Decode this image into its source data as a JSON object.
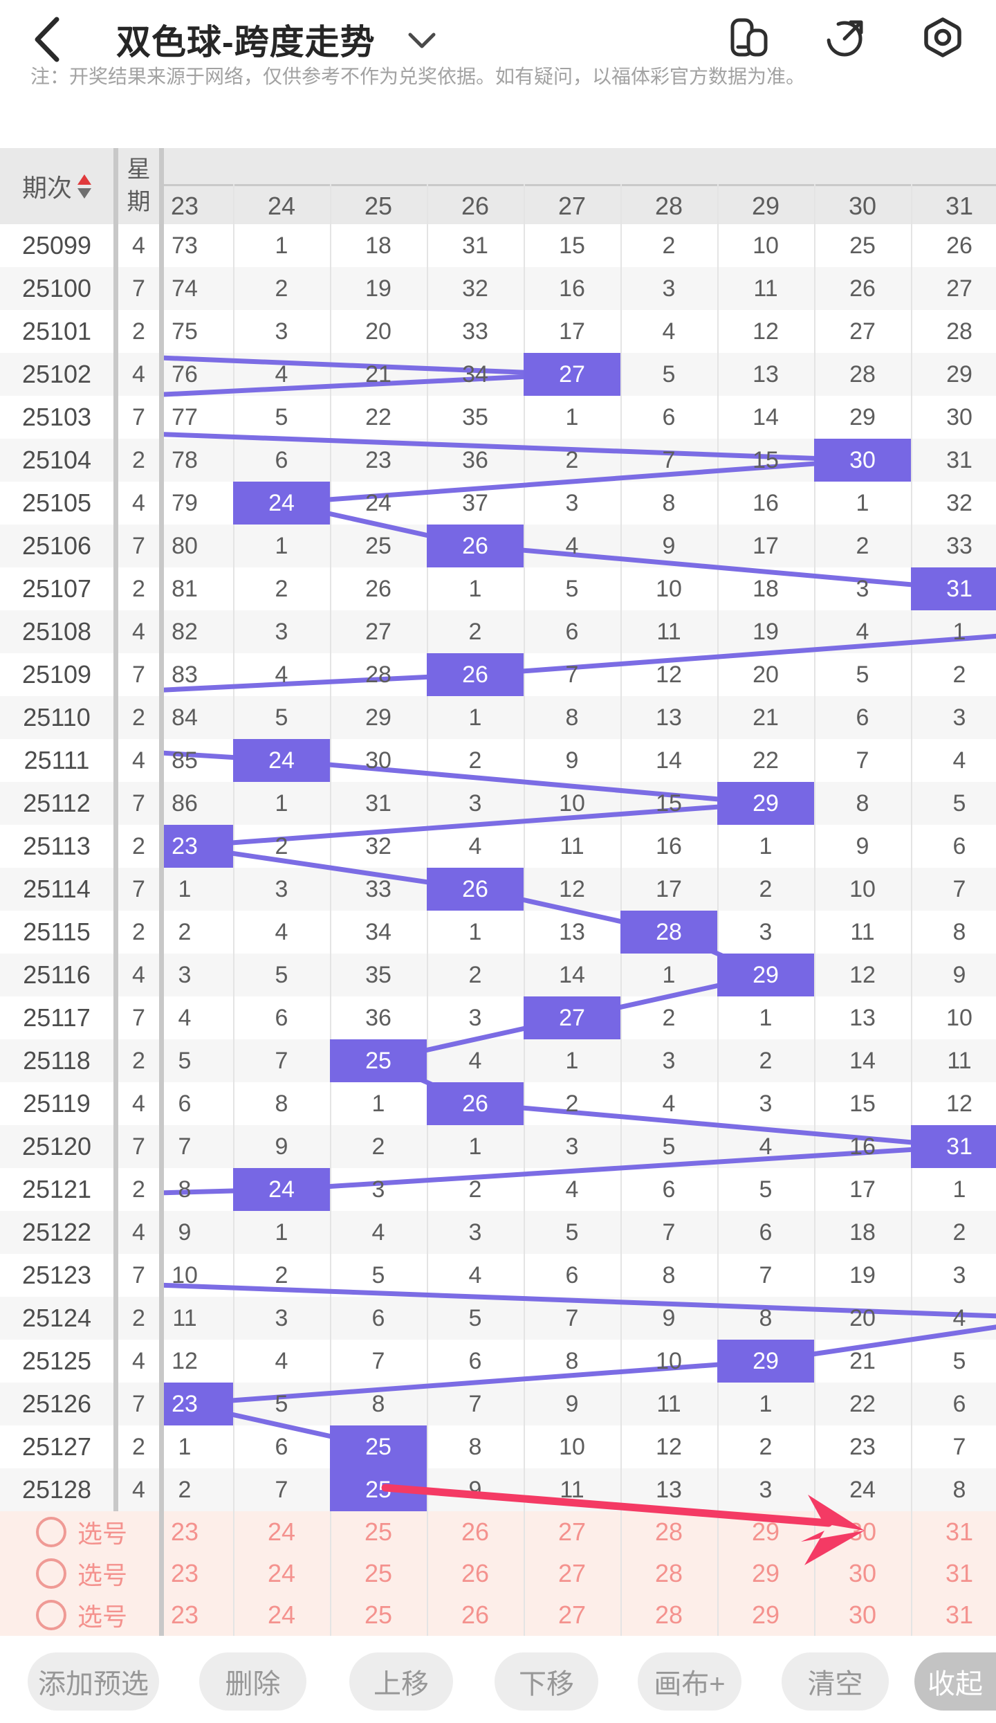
{
  "topbar": {
    "title": "双色球-跨度走势",
    "icons": [
      "window-switcher-icon",
      "share-icon",
      "settings-nut-icon"
    ]
  },
  "note": "注：开奖结果来源于网络，仅供参考不作为兑奖依据。如有疑问，以福体彩官方数据为准。",
  "table": {
    "period_header": "期次",
    "week_header": "星期",
    "columns": [
      "23",
      "24",
      "25",
      "26",
      "27",
      "28",
      "29",
      "30",
      "31"
    ],
    "col_start": 23,
    "rows": [
      {
        "period": "25099",
        "week": "4",
        "cells": [
          "73",
          "1",
          "18",
          "31",
          "15",
          "2",
          "10",
          "25",
          "26"
        ],
        "hit": null,
        "line_col": null
      },
      {
        "period": "25100",
        "week": "7",
        "cells": [
          "74",
          "2",
          "19",
          "32",
          "16",
          "3",
          "11",
          "26",
          "27"
        ],
        "hit": null,
        "line_col": null
      },
      {
        "period": "25101",
        "week": "2",
        "cells": [
          "75",
          "3",
          "20",
          "33",
          "17",
          "4",
          "12",
          "27",
          "28"
        ],
        "hit": null,
        "line_col": 16
      },
      {
        "period": "25102",
        "week": "4",
        "cells": [
          "76",
          "4",
          "21",
          "34",
          "27",
          "5",
          "13",
          "28",
          "29"
        ],
        "hit": 27,
        "line_col": 27
      },
      {
        "period": "25103",
        "week": "7",
        "cells": [
          "77",
          "5",
          "22",
          "35",
          "1",
          "6",
          "14",
          "29",
          "30"
        ],
        "hit": null,
        "line_col": 18
      },
      {
        "period": "25104",
        "week": "2",
        "cells": [
          "78",
          "6",
          "23",
          "36",
          "2",
          "7",
          "15",
          "30",
          "31"
        ],
        "hit": 30,
        "line_col": 30
      },
      {
        "period": "25105",
        "week": "4",
        "cells": [
          "79",
          "24",
          "24",
          "37",
          "3",
          "8",
          "16",
          "1",
          "32"
        ],
        "hit": 24,
        "line_col": 24
      },
      {
        "period": "25106",
        "week": "7",
        "cells": [
          "80",
          "1",
          "25",
          "26",
          "4",
          "9",
          "17",
          "2",
          "33"
        ],
        "hit": 26,
        "line_col": 26
      },
      {
        "period": "25107",
        "week": "2",
        "cells": [
          "81",
          "2",
          "26",
          "1",
          "5",
          "10",
          "18",
          "3",
          "31"
        ],
        "hit": 31,
        "line_col": 31
      },
      {
        "period": "25108",
        "week": "4",
        "cells": [
          "82",
          "3",
          "27",
          "2",
          "6",
          "11",
          "19",
          "4",
          "1"
        ],
        "hit": null,
        "line_col": 32
      },
      {
        "period": "25109",
        "week": "7",
        "cells": [
          "83",
          "4",
          "28",
          "26",
          "7",
          "12",
          "20",
          "5",
          "2"
        ],
        "hit": 26,
        "line_col": 26
      },
      {
        "period": "25110",
        "week": "2",
        "cells": [
          "84",
          "5",
          "29",
          "1",
          "8",
          "13",
          "21",
          "6",
          "3"
        ],
        "hit": null,
        "line_col": 17
      },
      {
        "period": "25111",
        "week": "4",
        "cells": [
          "85",
          "24",
          "30",
          "2",
          "9",
          "14",
          "22",
          "7",
          "4"
        ],
        "hit": 24,
        "line_col": 24
      },
      {
        "period": "25112",
        "week": "7",
        "cells": [
          "86",
          "1",
          "31",
          "3",
          "10",
          "15",
          "29",
          "8",
          "5"
        ],
        "hit": 29,
        "line_col": 29
      },
      {
        "period": "25113",
        "week": "2",
        "cells": [
          "23",
          "2",
          "32",
          "4",
          "11",
          "16",
          "1",
          "9",
          "6"
        ],
        "hit": 23,
        "line_col": 23
      },
      {
        "period": "25114",
        "week": "7",
        "cells": [
          "1",
          "3",
          "33",
          "26",
          "12",
          "17",
          "2",
          "10",
          "7"
        ],
        "hit": 26,
        "line_col": 26
      },
      {
        "period": "25115",
        "week": "2",
        "cells": [
          "2",
          "4",
          "34",
          "1",
          "13",
          "28",
          "3",
          "11",
          "8"
        ],
        "hit": 28,
        "line_col": 28
      },
      {
        "period": "25116",
        "week": "4",
        "cells": [
          "3",
          "5",
          "35",
          "2",
          "14",
          "1",
          "29",
          "12",
          "9"
        ],
        "hit": 29,
        "line_col": 29
      },
      {
        "period": "25117",
        "week": "7",
        "cells": [
          "4",
          "6",
          "36",
          "3",
          "27",
          "2",
          "1",
          "13",
          "10"
        ],
        "hit": 27,
        "line_col": 27
      },
      {
        "period": "25118",
        "week": "2",
        "cells": [
          "5",
          "7",
          "25",
          "4",
          "1",
          "3",
          "2",
          "14",
          "11"
        ],
        "hit": 25,
        "line_col": 25
      },
      {
        "period": "25119",
        "week": "4",
        "cells": [
          "6",
          "8",
          "1",
          "26",
          "2",
          "4",
          "3",
          "15",
          "12"
        ],
        "hit": 26,
        "line_col": 26
      },
      {
        "period": "25120",
        "week": "7",
        "cells": [
          "7",
          "9",
          "2",
          "1",
          "3",
          "5",
          "4",
          "16",
          "31"
        ],
        "hit": 31,
        "line_col": 31
      },
      {
        "period": "25121",
        "week": "2",
        "cells": [
          "8",
          "24",
          "3",
          "2",
          "4",
          "6",
          "5",
          "17",
          "1"
        ],
        "hit": 24,
        "line_col": 24
      },
      {
        "period": "25122",
        "week": "4",
        "cells": [
          "9",
          "1",
          "4",
          "3",
          "5",
          "7",
          "6",
          "18",
          "2"
        ],
        "hit": null,
        "line_col": 8
      },
      {
        "period": "25123",
        "week": "7",
        "cells": [
          "10",
          "2",
          "5",
          "4",
          "6",
          "8",
          "7",
          "19",
          "3"
        ],
        "hit": null,
        "line_col": 20
      },
      {
        "period": "25124",
        "week": "2",
        "cells": [
          "11",
          "3",
          "6",
          "5",
          "7",
          "9",
          "8",
          "20",
          "4"
        ],
        "hit": null,
        "line_col": 32
      },
      {
        "period": "25125",
        "week": "4",
        "cells": [
          "12",
          "4",
          "7",
          "6",
          "8",
          "10",
          "29",
          "21",
          "5"
        ],
        "hit": 29,
        "line_col": 29
      },
      {
        "period": "25126",
        "week": "7",
        "cells": [
          "23",
          "5",
          "8",
          "7",
          "9",
          "11",
          "1",
          "22",
          "6"
        ],
        "hit": 23,
        "line_col": 23
      },
      {
        "period": "25127",
        "week": "2",
        "cells": [
          "1",
          "6",
          "25",
          "8",
          "10",
          "12",
          "2",
          "23",
          "7"
        ],
        "hit": 25,
        "line_col": 25
      },
      {
        "period": "25128",
        "week": "4",
        "cells": [
          "2",
          "7",
          "25",
          "9",
          "11",
          "13",
          "3",
          "24",
          "8"
        ],
        "hit": 25,
        "line_col": 25
      }
    ]
  },
  "selection": {
    "label": "选号",
    "rows": [
      [
        "23",
        "24",
        "25",
        "26",
        "27",
        "28",
        "29",
        "30",
        "31"
      ],
      [
        "23",
        "24",
        "25",
        "26",
        "27",
        "28",
        "29",
        "30",
        "31"
      ],
      [
        "23",
        "24",
        "25",
        "26",
        "27",
        "28",
        "29",
        "30",
        "31"
      ]
    ]
  },
  "buttons": [
    {
      "label": "添加预选",
      "active": false
    },
    {
      "label": "删除",
      "active": false
    },
    {
      "label": "上移",
      "active": false
    },
    {
      "label": "下移",
      "active": false
    },
    {
      "label": "画布+",
      "active": false
    },
    {
      "label": "清空",
      "active": false
    },
    {
      "label": "收起",
      "active": true
    }
  ],
  "annotation": {
    "type": "arrow",
    "color": "#f43a64",
    "from_cell": "25128-col25",
    "to_cell": "selection-row1-col30"
  },
  "colors": {
    "hit_cell": "#7767e4",
    "trend_line": "#7b6ce4",
    "header_bg": "#e9e9e9",
    "row_stripe": "#f6f6f6",
    "pink_bg": "#fdeee9",
    "pink_text": "#f4928e",
    "arrow": "#f43a64",
    "sort_up": "#e03a3c",
    "sort_down": "#6f6f6f"
  }
}
